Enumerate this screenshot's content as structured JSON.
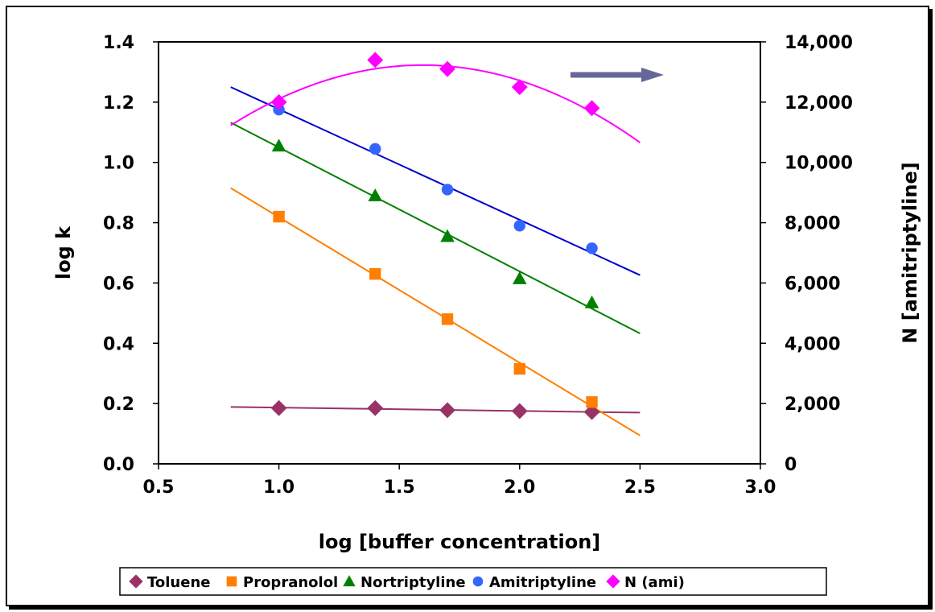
{
  "chart_data": {
    "type": "scatter",
    "xlabel": "log [buffer concentration]",
    "ylabel": "log k",
    "y2label": "N [amitriptyline]",
    "xlim": [
      0.5,
      3.0
    ],
    "ylim": [
      0.0,
      1.4
    ],
    "y2lim": [
      0,
      14000
    ],
    "x_ticks": [
      "0.5",
      "1.0",
      "1.5",
      "2.0",
      "2.5",
      "3.0"
    ],
    "y_ticks": [
      "0.0",
      "0.2",
      "0.4",
      "0.6",
      "0.8",
      "1.0",
      "1.2",
      "1.4"
    ],
    "y2_ticks": [
      "0",
      "2,000",
      "4,000",
      "6,000",
      "8,000",
      "10,000",
      "12,000",
      "14,000"
    ],
    "grid": false,
    "legend_position": "bottom",
    "series": [
      {
        "name": "Toluene",
        "marker": "diamond",
        "color": "#993366",
        "axis": "left",
        "x": [
          1.0,
          1.4,
          1.7,
          2.0,
          2.3
        ],
        "y": [
          0.185,
          0.185,
          0.178,
          0.175,
          0.172
        ],
        "trend": "linear",
        "trend_range": [
          0.8,
          2.5
        ]
      },
      {
        "name": "Propranolol",
        "marker": "square",
        "color": "#ff7f00",
        "axis": "left",
        "x": [
          1.0,
          1.4,
          1.7,
          2.0,
          2.3
        ],
        "y": [
          0.82,
          0.63,
          0.48,
          0.315,
          0.205
        ],
        "trend": "linear",
        "trend_range": [
          0.8,
          2.5
        ]
      },
      {
        "name": "Nortriptyline",
        "marker": "triangle",
        "color": "#008000",
        "axis": "left",
        "x": [
          1.0,
          1.4,
          1.7,
          2.0,
          2.3
        ],
        "y": [
          1.055,
          0.89,
          0.755,
          0.615,
          0.535
        ],
        "trend": "linear",
        "trend_range": [
          0.8,
          2.5
        ]
      },
      {
        "name": "Amitriptyline",
        "marker": "circle",
        "color": "#3366ff",
        "axis": "left",
        "x": [
          1.0,
          1.4,
          1.7,
          2.0,
          2.3
        ],
        "y": [
          1.175,
          1.045,
          0.91,
          0.79,
          0.715
        ],
        "trend": "linear",
        "trend_range": [
          0.8,
          2.5
        ]
      },
      {
        "name": "N (ami)",
        "marker": "diamond",
        "color": "#ff00ff",
        "axis": "right",
        "x": [
          1.0,
          1.4,
          1.7,
          2.0,
          2.3
        ],
        "y": [
          12000,
          13400,
          13100,
          12500,
          11800
        ],
        "trend": "polynomial",
        "trend_range": [
          0.8,
          2.5
        ]
      }
    ],
    "trend_lines": {
      "Toluene": {
        "color": "#993366"
      },
      "Propranolol": {
        "color": "#ff7f00"
      },
      "Nortriptyline": {
        "color": "#008000"
      },
      "Amitriptyline": {
        "color": "#0000cc"
      },
      "N (ami)": {
        "color": "#ff00ff"
      }
    },
    "annotation": {
      "type": "arrow",
      "direction": "right",
      "color": "#666699",
      "meaning": "N (ami) uses right axis"
    }
  }
}
